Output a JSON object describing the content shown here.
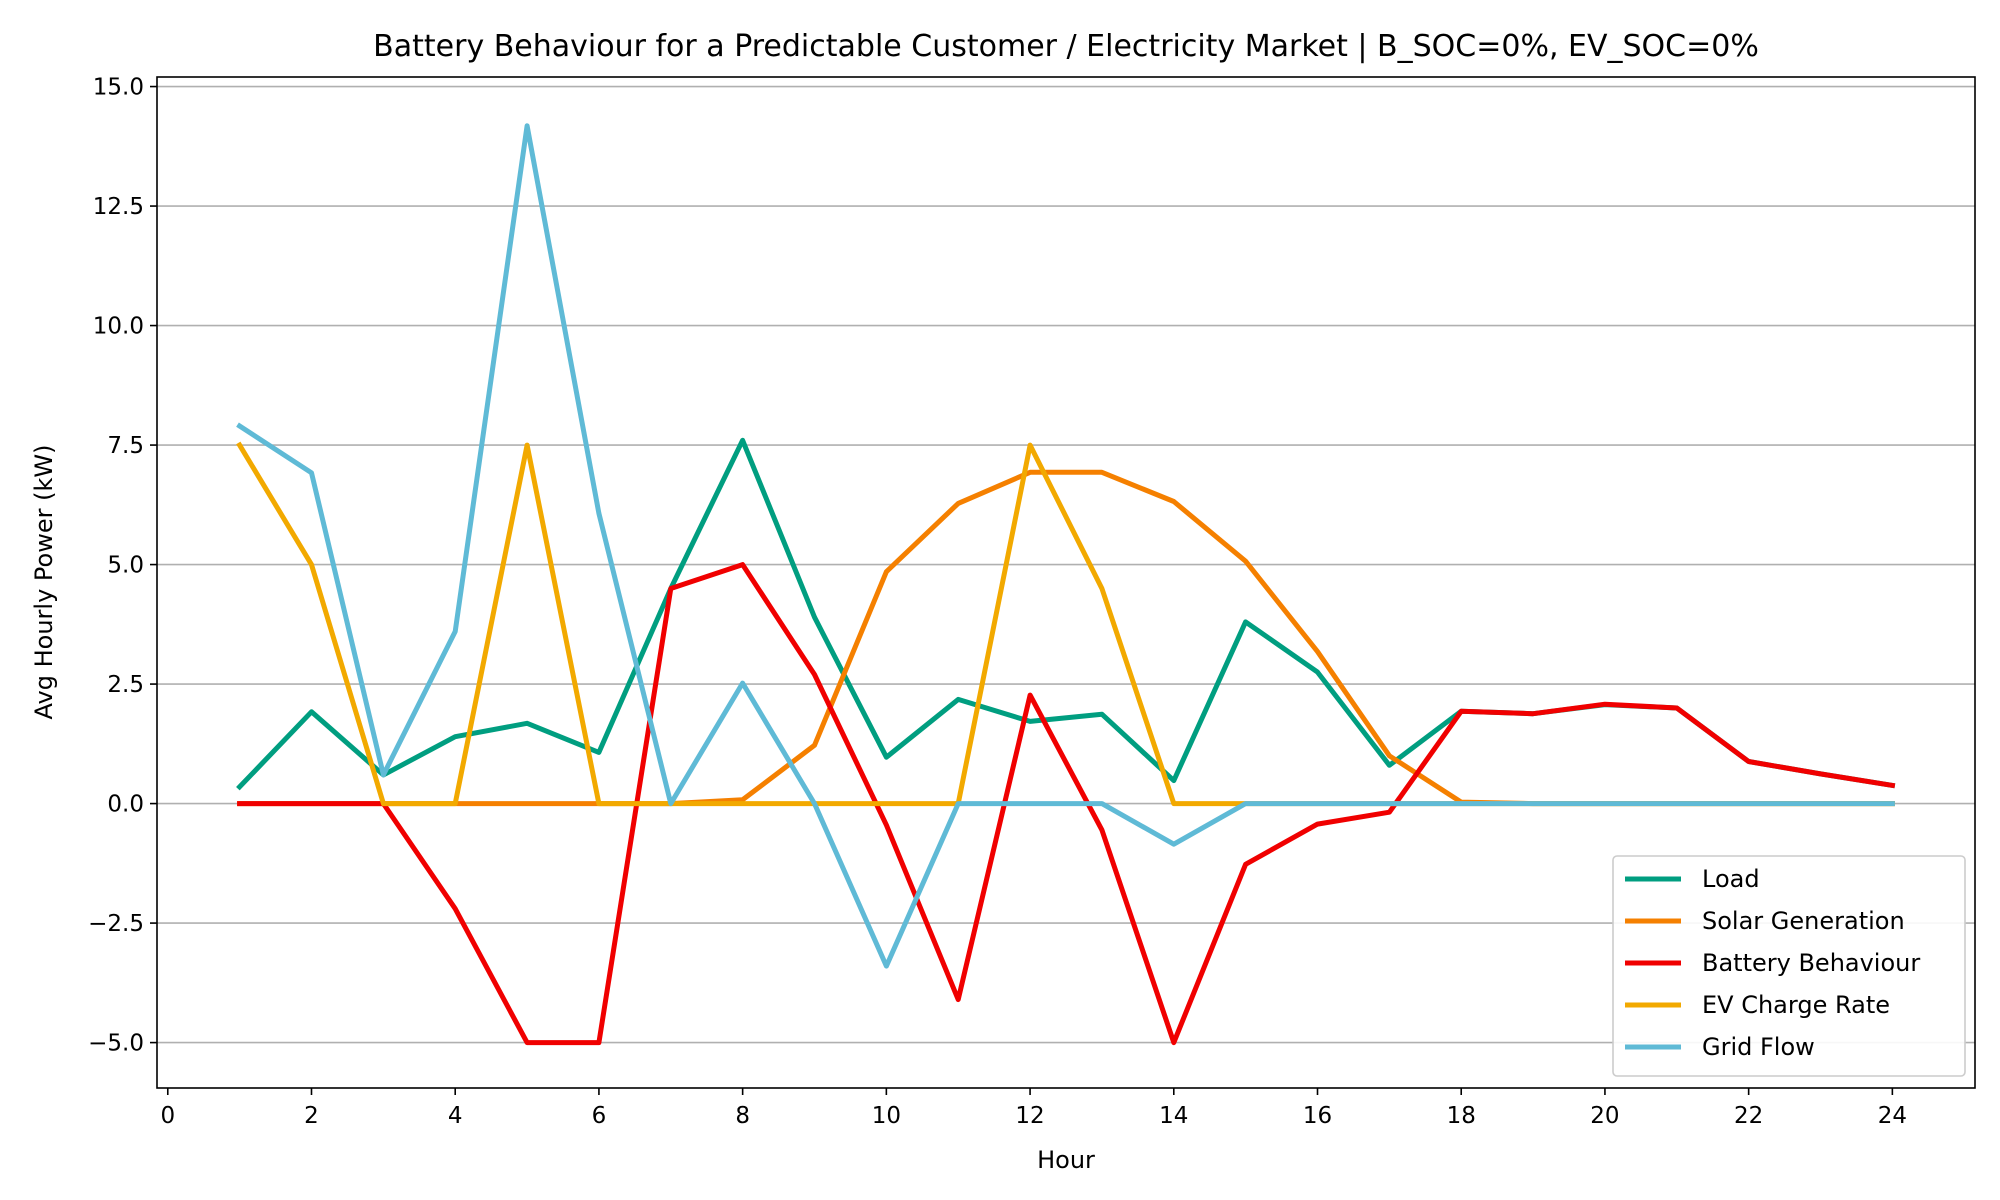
{
  "chart_data": {
    "type": "line",
    "title": "Battery Behaviour for a Predictable Customer / Electricity Market | B_SOC=0%, EV_SOC=0%",
    "xlabel": "Hour",
    "ylabel": "Avg Hourly Power (kW)",
    "xlim": [
      -0.15,
      25.15
    ],
    "ylim": [
      -5.95,
      15.2
    ],
    "xticks": [
      0,
      2,
      4,
      6,
      8,
      10,
      12,
      14,
      16,
      18,
      20,
      22,
      24
    ],
    "xtick_labels": [
      "0",
      "2",
      "4",
      "6",
      "8",
      "10",
      "12",
      "14",
      "16",
      "18",
      "20",
      "22",
      "24"
    ],
    "yticks": [
      -5.0,
      -2.5,
      0.0,
      2.5,
      5.0,
      7.5,
      10.0,
      12.5,
      15.0
    ],
    "ytick_labels": [
      "−5.0",
      "−2.5",
      "0.0",
      "2.5",
      "5.0",
      "7.5",
      "10.0",
      "12.5",
      "15.0"
    ],
    "grid": "horizontal",
    "legend_position": "bottom-right",
    "x": [
      1,
      2,
      3,
      4,
      5,
      6,
      7,
      8,
      9,
      10,
      11,
      12,
      13,
      14,
      15,
      16,
      17,
      18,
      19,
      20,
      21,
      22,
      23,
      24
    ],
    "series": [
      {
        "name": "Load",
        "color": "#009e80",
        "values": [
          0.35,
          1.92,
          0.6,
          1.4,
          1.68,
          1.07,
          4.5,
          7.6,
          3.9,
          0.97,
          2.18,
          1.72,
          1.87,
          0.48,
          3.8,
          2.75,
          0.8,
          1.93,
          1.88,
          2.07,
          2.0,
          0.88,
          0.62,
          0.38
        ]
      },
      {
        "name": "Solar Generation",
        "color": "#f58000",
        "values": [
          0.0,
          0.0,
          0.0,
          0.0,
          0.0,
          0.0,
          0.0,
          0.08,
          1.22,
          4.85,
          6.28,
          6.93,
          6.93,
          6.32,
          5.07,
          3.18,
          1.0,
          0.03,
          0.0,
          0.0,
          0.0,
          0.0,
          0.0,
          0.0
        ]
      },
      {
        "name": "Battery Behaviour",
        "color": "#f00000",
        "values": [
          0.0,
          0.0,
          0.0,
          -2.2,
          -5.0,
          -5.0,
          4.5,
          5.0,
          2.7,
          -0.45,
          -4.1,
          2.27,
          -0.55,
          -5.0,
          -1.27,
          -0.43,
          -0.18,
          1.93,
          1.88,
          2.08,
          2.0,
          0.88,
          0.62,
          0.38
        ]
      },
      {
        "name": "EV Charge Rate",
        "color": "#f2a900",
        "values": [
          7.5,
          5.0,
          0.0,
          0.0,
          7.5,
          0.0,
          0.0,
          0.0,
          0.0,
          0.0,
          0.0,
          7.5,
          4.5,
          0.0,
          0.0,
          0.0,
          0.0,
          0.0,
          0.0,
          0.0,
          0.0,
          0.0,
          0.0,
          0.0
        ]
      },
      {
        "name": "Grid Flow",
        "color": "#5fbad6",
        "values": [
          7.9,
          6.92,
          0.6,
          3.6,
          14.18,
          6.07,
          0.0,
          2.52,
          0.0,
          -3.4,
          0.0,
          0.0,
          0.0,
          -0.85,
          0.0,
          0.0,
          0.0,
          0.0,
          0.0,
          0.0,
          0.0,
          0.0,
          0.0,
          0.0
        ]
      }
    ]
  }
}
